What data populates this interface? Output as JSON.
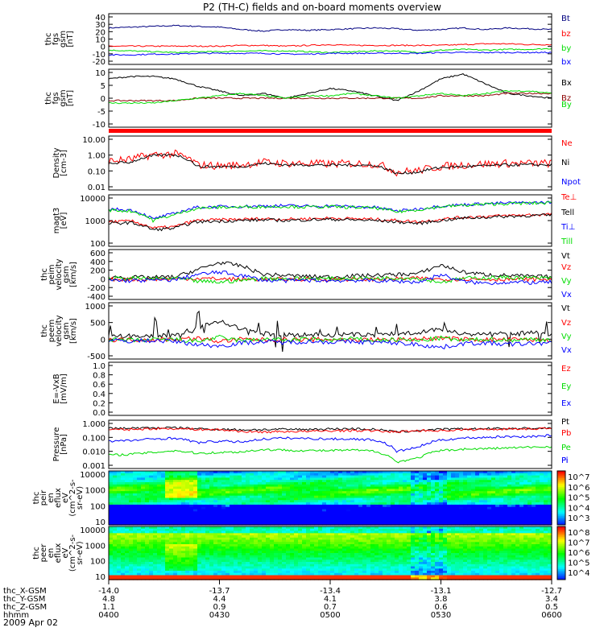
{
  "title": "P2 (TH-C) fields and on-board moments overview",
  "date": "2009 Apr 02",
  "colors": {
    "black": "#000000",
    "red": "#ff0000",
    "green": "#00dd00",
    "blue": "#0000ff",
    "navy": "#000080",
    "darkred": "#8b0000"
  },
  "xaxis": {
    "rows": [
      {
        "label": "thc_X-GSM",
        "values": [
          "-14.0",
          "-13.7",
          "-13.4",
          "-13.1",
          "-12.7"
        ]
      },
      {
        "label": "thc_Y-GSM",
        "values": [
          "4.8",
          "4.4",
          "4.1",
          "3.8",
          "3.4"
        ]
      },
      {
        "label": "thc_Z-GSM",
        "values": [
          "1.1",
          "0.9",
          "0.7",
          "0.6",
          "0.5"
        ]
      },
      {
        "label": "hhmm",
        "values": [
          "0400",
          "0430",
          "0500",
          "0530",
          "0600"
        ]
      }
    ]
  },
  "chart_data": [
    {
      "type": "line",
      "ylabel": [
        "thc",
        "fgs",
        "gsm",
        "[nT]"
      ],
      "ticks": [
        "40",
        "30",
        "20",
        "10",
        "0",
        "-10",
        "-20"
      ],
      "ylim": [
        -22,
        42
      ],
      "series": [
        {
          "name": "Bt",
          "color": "navy",
          "values": [
            24,
            25,
            26,
            27,
            26,
            25,
            22,
            20,
            22,
            21,
            22,
            23,
            24,
            23,
            21,
            22,
            24,
            22,
            24,
            23,
            22
          ]
        },
        {
          "name": "bz",
          "color": "red",
          "values": [
            1,
            1,
            1,
            1,
            1,
            1,
            2,
            2,
            1,
            2,
            3,
            2,
            2,
            2,
            2,
            2,
            3,
            4,
            4,
            3,
            3
          ]
        },
        {
          "name": "by",
          "color": "green",
          "values": [
            -4,
            -5,
            -6,
            -7,
            -6,
            -6,
            -5,
            -5,
            -5,
            -6,
            -7,
            -6,
            -5,
            -5,
            -7,
            -4,
            -3,
            -4,
            -3,
            -3,
            -2
          ]
        },
        {
          "name": "bx",
          "color": "blue",
          "values": [
            -10,
            -10,
            -9,
            -9,
            -8,
            -8,
            -8,
            -8,
            -9,
            -9,
            -8,
            -8,
            -8,
            -8,
            -8,
            -7,
            -7,
            -7,
            -7,
            -7,
            -7
          ]
        }
      ]
    },
    {
      "type": "line",
      "ylabel": [
        "thc",
        "fgs",
        "gsm",
        "[nT]"
      ],
      "ticks": [
        "10",
        "5",
        "0",
        "-5",
        "-10"
      ],
      "ylim": [
        -13,
        11
      ],
      "series": [
        {
          "name": "Bx",
          "color": "black",
          "values": [
            7,
            8,
            8,
            7,
            4,
            2,
            0,
            1,
            -1,
            1,
            3,
            2,
            0,
            -2,
            2,
            7,
            9,
            5,
            1,
            0,
            -1
          ]
        },
        {
          "name": "Bz",
          "color": "darkred",
          "values": [
            -2,
            -2,
            -2,
            -2,
            -1,
            -1,
            -1,
            -1,
            -1,
            -1,
            -1,
            -1,
            -1,
            -1,
            -1,
            0,
            0,
            0,
            1,
            1,
            1
          ]
        },
        {
          "name": "By",
          "color": "green",
          "values": [
            -3,
            -3,
            -3,
            -2,
            -1,
            0,
            1,
            0,
            -1,
            0,
            0,
            1,
            0,
            -1,
            0,
            1,
            0,
            1,
            2,
            2,
            1
          ]
        }
      ]
    },
    {
      "type": "line",
      "ylabel": [
        "Density",
        "[cm-3]"
      ],
      "log": true,
      "ticks": [
        "10.00",
        "1.00",
        "0.10",
        "0.01"
      ],
      "ylim": [
        0.01,
        10
      ],
      "series": [
        {
          "name": "Ne",
          "color": "red",
          "values": [
            0.4,
            0.5,
            0.9,
            1.0,
            0.25,
            0.22,
            0.25,
            0.35,
            0.3,
            0.3,
            0.28,
            0.3,
            0.28,
            0.1,
            0.12,
            0.2,
            0.25,
            0.28,
            0.3,
            0.3,
            0.3
          ]
        },
        {
          "name": "Ni",
          "color": "black",
          "values": [
            0.3,
            0.35,
            0.8,
            0.9,
            0.2,
            0.2,
            0.2,
            0.3,
            0.25,
            0.25,
            0.24,
            0.25,
            0.23,
            0.08,
            0.1,
            0.18,
            0.2,
            0.22,
            0.25,
            0.25,
            0.25
          ]
        },
        {
          "name": "Npot",
          "color": "blue",
          "values": []
        }
      ]
    },
    {
      "type": "line",
      "ylabel": [
        "magt3",
        "[eV]"
      ],
      "log": true,
      "ticks": [
        "10000",
        "1000",
        "100"
      ],
      "ylim": [
        40,
        12000
      ],
      "series": [
        {
          "name": "Te⊥",
          "color": "red",
          "values": [
            600,
            650,
            300,
            350,
            700,
            750,
            800,
            850,
            800,
            850,
            900,
            850,
            800,
            700,
            600,
            800,
            1000,
            1100,
            1200,
            1300,
            1400
          ]
        },
        {
          "name": "Tell",
          "color": "black",
          "values": [
            500,
            550,
            250,
            300,
            600,
            650,
            700,
            750,
            700,
            750,
            800,
            750,
            700,
            600,
            500,
            700,
            900,
            1000,
            1100,
            1200,
            1250
          ]
        },
        {
          "name": "Ti⊥",
          "color": "blue",
          "values": [
            2500,
            2200,
            800,
            1500,
            3000,
            3200,
            3300,
            3500,
            3600,
            3400,
            3500,
            3200,
            3000,
            2000,
            2500,
            3500,
            4000,
            4500,
            4800,
            5000,
            5200
          ]
        },
        {
          "name": "Till",
          "color": "green",
          "values": [
            2200,
            2000,
            700,
            1300,
            2700,
            3000,
            3100,
            3200,
            3300,
            3100,
            3200,
            3000,
            2800,
            1800,
            2300,
            3200,
            3700,
            4200,
            4500,
            4700,
            4900
          ]
        }
      ]
    },
    {
      "type": "line",
      "ylabel": [
        "thc",
        "peim",
        "velocity",
        "gsm",
        "[km/s]"
      ],
      "ticks": [
        "600",
        "400",
        "200",
        "0",
        "-200",
        "-400"
      ],
      "ylim": [
        -420,
        620
      ],
      "series": [
        {
          "name": "Vt",
          "color": "black",
          "values": [
            50,
            40,
            40,
            50,
            200,
            350,
            280,
            100,
            80,
            60,
            50,
            70,
            80,
            100,
            120,
            300,
            150,
            100,
            80,
            60,
            50
          ]
        },
        {
          "name": "Vz",
          "color": "red",
          "values": [
            0,
            0,
            0,
            10,
            20,
            10,
            0,
            0,
            0,
            0,
            0,
            0,
            0,
            10,
            20,
            0,
            10,
            0,
            0,
            0,
            0
          ]
        },
        {
          "name": "Vy",
          "color": "green",
          "values": [
            10,
            20,
            10,
            20,
            -40,
            -60,
            -20,
            20,
            10,
            20,
            10,
            20,
            20,
            30,
            20,
            -60,
            20,
            30,
            40,
            30,
            20
          ]
        },
        {
          "name": "Vx",
          "color": "blue",
          "values": [
            -20,
            -30,
            -20,
            -10,
            100,
            150,
            80,
            -20,
            -30,
            -20,
            -30,
            -20,
            -30,
            -40,
            -60,
            100,
            -50,
            -80,
            -60,
            -70,
            -60
          ]
        }
      ]
    },
    {
      "type": "line",
      "ylabel": [
        "thc",
        "peem",
        "velocity",
        "gsm",
        "[km/s]"
      ],
      "ticks": [
        "1000",
        "500",
        "0",
        "-500"
      ],
      "ylim": [
        -620,
        1200
      ],
      "series": [
        {
          "name": "Vt",
          "color": "black",
          "values": [
            100,
            120,
            130,
            150,
            400,
            600,
            350,
            200,
            180,
            150,
            160,
            170,
            160,
            200,
            250,
            350,
            200,
            180,
            200,
            220,
            200
          ]
        },
        {
          "name": "Vz",
          "color": "red",
          "values": [
            0,
            10,
            0,
            20,
            50,
            -50,
            20,
            0,
            10,
            0,
            20,
            0,
            10,
            0,
            30,
            50,
            20,
            0,
            10,
            0,
            0
          ]
        },
        {
          "name": "Vy",
          "color": "green",
          "values": [
            0,
            -20,
            0,
            10,
            -50,
            80,
            -30,
            20,
            -10,
            20,
            -10,
            30,
            -20,
            10,
            -30,
            60,
            -20,
            20,
            -10,
            20,
            0
          ]
        },
        {
          "name": "Vx",
          "color": "blue",
          "values": [
            -30,
            -40,
            -20,
            -50,
            -150,
            -200,
            -100,
            -60,
            -80,
            -50,
            -70,
            -60,
            -80,
            -100,
            -150,
            -250,
            -120,
            -100,
            -150,
            -120,
            -100
          ]
        }
      ]
    },
    {
      "type": "line",
      "ylabel": [
        "E=-VxB",
        "[mV/m]"
      ],
      "ticks": [
        "1.0",
        "0.8",
        "0.6",
        "0.4",
        "0.2",
        "0.0"
      ],
      "ylim": [
        0,
        1
      ],
      "series": [
        {
          "name": "Ez",
          "color": "red",
          "values": []
        },
        {
          "name": "Ey",
          "color": "green",
          "values": []
        },
        {
          "name": "Ex",
          "color": "blue",
          "values": []
        }
      ]
    },
    {
      "type": "line",
      "ylabel": [
        "Pressure",
        "[nPa]"
      ],
      "log": true,
      "ticks": [
        "1.000",
        "0.100",
        "0.010",
        "0.001"
      ],
      "ylim": [
        0.0008,
        1.2
      ],
      "series": [
        {
          "name": "Pt",
          "color": "black",
          "values": [
            0.35,
            0.36,
            0.38,
            0.38,
            0.33,
            0.3,
            0.28,
            0.29,
            0.3,
            0.3,
            0.32,
            0.33,
            0.3,
            0.2,
            0.25,
            0.3,
            0.32,
            0.33,
            0.34,
            0.35,
            0.36
          ]
        },
        {
          "name": "Pb",
          "color": "red",
          "values": [
            0.28,
            0.3,
            0.33,
            0.34,
            0.3,
            0.28,
            0.22,
            0.2,
            0.22,
            0.22,
            0.24,
            0.25,
            0.24,
            0.2,
            0.25,
            0.25,
            0.28,
            0.3,
            0.32,
            0.33,
            0.35
          ]
        },
        {
          "name": "Pe",
          "color": "green",
          "values": [
            0.006,
            0.007,
            0.009,
            0.012,
            0.008,
            0.009,
            0.01,
            0.014,
            0.013,
            0.012,
            0.012,
            0.013,
            0.011,
            0.002,
            0.004,
            0.012,
            0.015,
            0.016,
            0.018,
            0.02,
            0.022
          ]
        },
        {
          "name": "Pi",
          "color": "blue",
          "values": [
            0.05,
            0.055,
            0.07,
            0.08,
            0.04,
            0.05,
            0.045,
            0.07,
            0.08,
            0.075,
            0.07,
            0.07,
            0.06,
            0.01,
            0.02,
            0.06,
            0.08,
            0.09,
            0.1,
            0.1,
            0.12
          ]
        }
      ]
    },
    {
      "type": "heatmap",
      "ylabel": [
        "thc",
        "peir",
        "en",
        "eflux",
        "eV",
        "(cm^2-s-",
        "sr-eV)"
      ],
      "ticks": [
        "10000",
        "1000",
        "100",
        "10"
      ],
      "colorbar": [
        "10^7",
        "10^6",
        "10^5",
        "10^4",
        "10^3"
      ]
    },
    {
      "type": "heatmap",
      "ylabel": [
        "thc",
        "peer",
        "en",
        "eflux",
        "eV",
        "(cm^2-s-",
        "sr-eV)"
      ],
      "ticks": [
        "10000",
        "1000",
        "100",
        "10"
      ],
      "colorbar": [
        "10^8",
        "10^7",
        "10^6",
        "10^5",
        "10^4"
      ]
    }
  ]
}
